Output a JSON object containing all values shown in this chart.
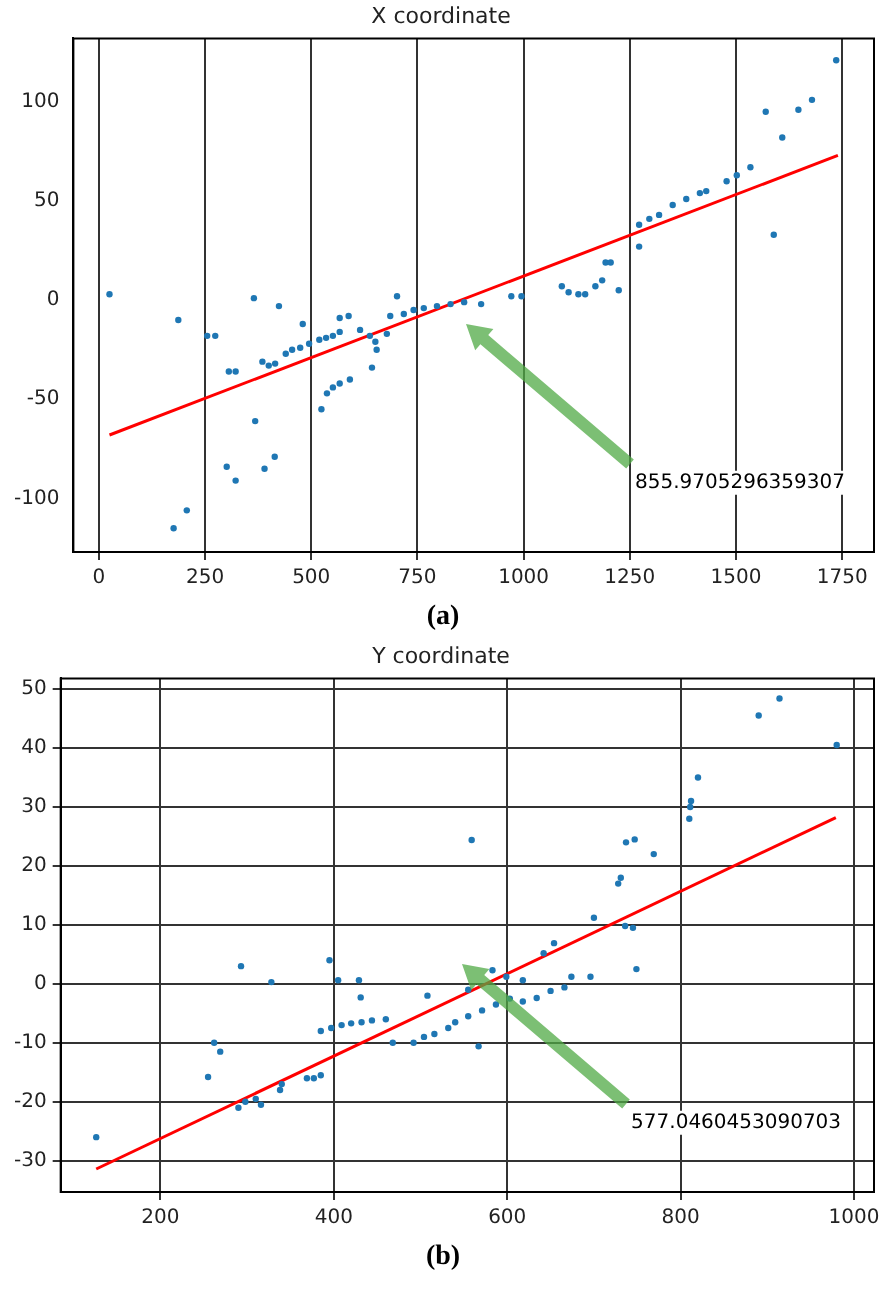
{
  "chart_data": [
    {
      "type": "scatter",
      "title": "X coordinate",
      "xlim": [
        -60,
        1825
      ],
      "ylim": [
        -127,
        132
      ],
      "xticks": [
        0,
        250,
        500,
        750,
        1000,
        1250,
        1500,
        1750
      ],
      "yticks": [
        -100,
        -50,
        0,
        50,
        100
      ],
      "grid": "x",
      "annotations": [
        "855.9705296359307",
        "(a)"
      ],
      "series": [
        {
          "type": "scatter",
          "marker": "circle",
          "color": "#1f77b4",
          "x": [
            25,
            187,
            255,
            274,
            306,
            322,
            365,
            368,
            301,
            322,
            390,
            414,
            176,
            207,
            385,
            400,
            415,
            424,
            480,
            440,
            455,
            474,
            495,
            519,
            535,
            551,
            567,
            524,
            537,
            551,
            567,
            591,
            567,
            588,
            615,
            638,
            651,
            654,
            643,
            678,
            702,
            686,
            718,
            741,
            765,
            796,
            828,
            860,
            900,
            971,
            995,
            1090,
            1106,
            1129,
            1145,
            1169,
            1185,
            1193,
            1205,
            1224,
            1272,
            1272,
            1296,
            1319,
            1351,
            1383,
            1415,
            1430,
            1478,
            1502,
            1534,
            1570,
            1589,
            1609,
            1647,
            1679,
            1736
          ],
          "values": [
            3,
            -10,
            -18,
            -18,
            -36,
            -36,
            1,
            -61,
            -84,
            -91,
            -85,
            -79,
            -115,
            -106,
            -31,
            -33,
            -32,
            -3,
            -12,
            -27,
            -25,
            -24,
            -22,
            -20,
            -19,
            -18,
            -16,
            -55,
            -47,
            -44,
            -42,
            -40,
            -9,
            -8,
            -15,
            -18,
            -21,
            -25,
            -34,
            -17,
            2,
            -8,
            -7,
            -5,
            -4,
            -3,
            -2,
            -1,
            -2,
            2,
            2,
            7,
            4,
            3,
            3,
            7,
            10,
            19,
            19,
            5,
            27,
            38,
            41,
            43,
            48,
            51,
            54,
            55,
            60,
            63,
            67,
            95,
            33,
            82,
            96,
            101,
            121
          ]
        },
        {
          "type": "line",
          "color": "#ff0000",
          "x": [
            25,
            1740
          ],
          "values": [
            -68,
            73
          ]
        }
      ]
    },
    {
      "type": "scatter",
      "title": "Y coordinate",
      "xlim": [
        85,
        1023
      ],
      "ylim": [
        -35.3,
        51.8
      ],
      "xticks": [
        200,
        400,
        600,
        800,
        1000
      ],
      "yticks": [
        -30,
        -20,
        -10,
        0,
        10,
        20,
        30,
        40,
        50
      ],
      "grid": true,
      "annotations": [
        "577.0460453090703",
        "(b)"
      ],
      "series": [
        {
          "type": "scatter",
          "marker": "circle",
          "color": "#1f77b4",
          "x": [
            126,
            255,
            293,
            328,
            290,
            298,
            310,
            316,
            338,
            340,
            262,
            269,
            369,
            377,
            385,
            395,
            405,
            429,
            431,
            385,
            397,
            409,
            420,
            432,
            444,
            460,
            468,
            508,
            492,
            504,
            516,
            532,
            540,
            555,
            571,
            587,
            603,
            555,
            567,
            583,
            599,
            618,
            642,
            654,
            618,
            634,
            650,
            666,
            674,
            696,
            559,
            700,
            728,
            731,
            737,
            747,
            769,
            810,
            812,
            811,
            820,
            890,
            914,
            980,
            736,
            745,
            749
          ],
          "values": [
            -26,
            -15.8,
            3,
            0.3,
            -21,
            -20,
            -19.5,
            -20.5,
            -18,
            -17,
            -10,
            -11.5,
            -16,
            -16,
            -15.5,
            4,
            0.6,
            0.6,
            -2.3,
            -8,
            -7.5,
            -7,
            -6.7,
            -6.5,
            -6.2,
            -6,
            -10,
            -2,
            -10,
            -9,
            -8.5,
            -7.5,
            -6.5,
            -5.5,
            -4.5,
            -3.5,
            -2.5,
            -1,
            -10.6,
            2.3,
            1.2,
            0.6,
            5.2,
            6.9,
            -3,
            -2.4,
            -1.2,
            -0.6,
            1.2,
            1.2,
            24.4,
            11.2,
            17,
            18,
            24,
            24.5,
            22,
            28,
            31,
            30,
            35,
            45.5,
            48.4,
            40.5,
            9.8,
            9.5,
            2.5
          ]
        },
        {
          "type": "line",
          "color": "#ff0000",
          "x": [
            126,
            979
          ],
          "values": [
            -31.4,
            28.2
          ]
        }
      ]
    }
  ]
}
